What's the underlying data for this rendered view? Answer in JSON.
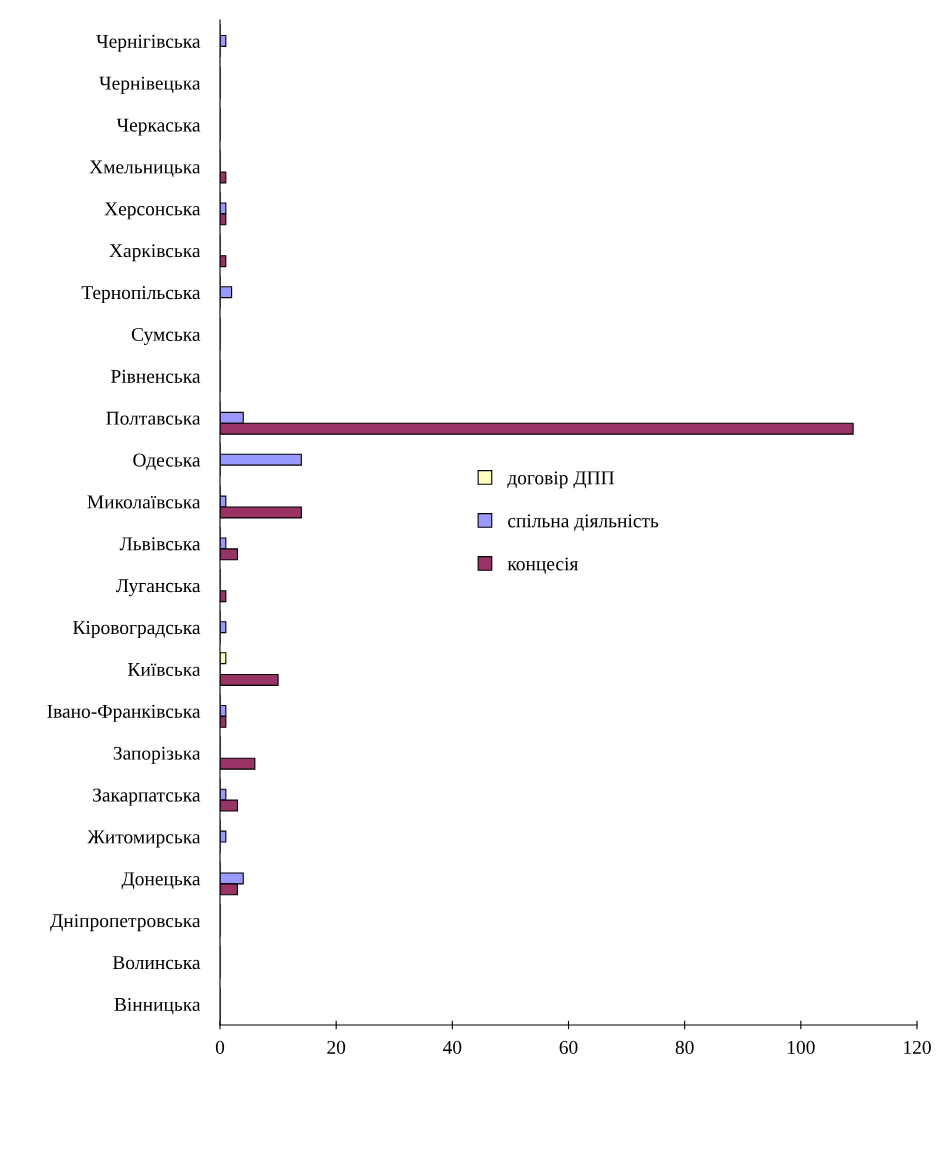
{
  "chart_data": {
    "type": "bar",
    "orientation": "horizontal",
    "categories": [
      "Чернігівська",
      "Чернівецька",
      "Черкаська",
      "Хмельницька",
      "Херсонська",
      "Харківська",
      "Тернопільська",
      "Сумська",
      "Рівненська",
      "Полтавська",
      "Одеська",
      "Миколаївська",
      "Львівська",
      "Луганська",
      "Кіровоградська",
      "Київська",
      "Івано-Франківська",
      "Запорізька",
      "Закарпатська",
      "Житомирська",
      "Донецька",
      "Дніпропетровська",
      "Волинська",
      "Вінницька"
    ],
    "series": [
      {
        "name": "договір ДПП",
        "color": "#ffffc0",
        "values": [
          0,
          0,
          0,
          0,
          0,
          0,
          0,
          0,
          0,
          0,
          0,
          0,
          0,
          0,
          0,
          1,
          0,
          0,
          0,
          0,
          0,
          0,
          0,
          0
        ]
      },
      {
        "name": "спільна діяльність",
        "color": "#9999ff",
        "values": [
          1,
          0,
          0,
          0,
          1,
          0,
          2,
          0,
          0,
          4,
          14,
          1,
          1,
          0,
          1,
          0,
          1,
          0,
          1,
          1,
          4,
          0,
          0,
          0
        ]
      },
      {
        "name": "концесія",
        "color": "#993366",
        "values": [
          0,
          0,
          0,
          1,
          1,
          1,
          0,
          0,
          0,
          109,
          0,
          14,
          3,
          1,
          0,
          10,
          1,
          6,
          3,
          0,
          3,
          0,
          0,
          0
        ]
      }
    ],
    "xlim": [
      0,
      120
    ],
    "xticks": [
      0,
      20,
      40,
      60,
      80,
      100,
      120
    ],
    "grid": false,
    "legend": "center"
  }
}
